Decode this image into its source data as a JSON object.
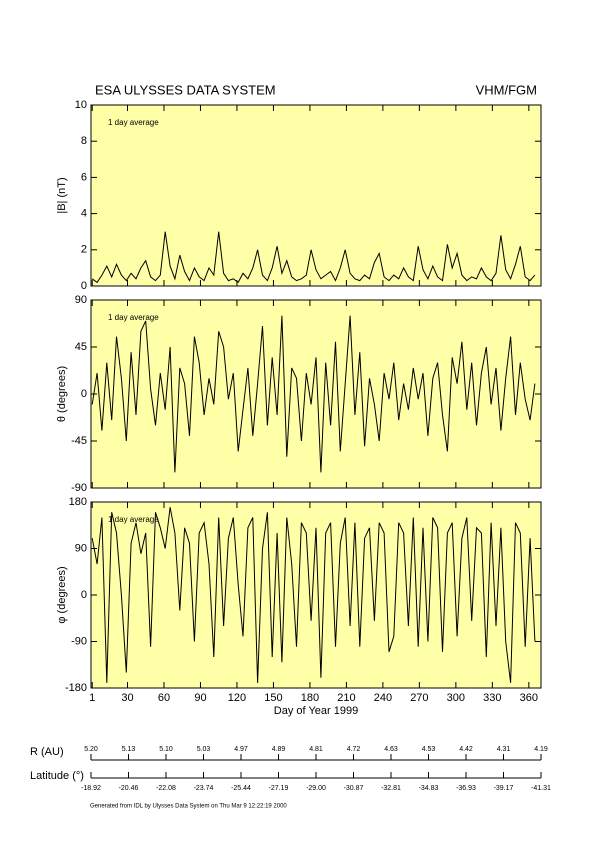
{
  "header": {
    "title": "ESA ULYSSES DATA SYSTEM",
    "instrument": "VHM/FGM"
  },
  "chart_data": [
    {
      "type": "line",
      "ylabel": "|B| (nT)",
      "annotation": "1 day average",
      "color": "#000000",
      "background": "#ffffa8",
      "xlim": [
        0,
        370
      ],
      "xticks": [
        1,
        30,
        60,
        90,
        120,
        150,
        180,
        210,
        240,
        270,
        300,
        330,
        360
      ],
      "ylim": [
        0,
        10
      ],
      "yticks": [
        0,
        2,
        4,
        6,
        8,
        10
      ],
      "x": [
        1,
        5,
        9,
        13,
        17,
        21,
        25,
        29,
        33,
        37,
        41,
        45,
        49,
        53,
        57,
        61,
        65,
        69,
        73,
        77,
        81,
        85,
        89,
        93,
        97,
        101,
        105,
        109,
        113,
        117,
        121,
        125,
        129,
        133,
        137,
        141,
        145,
        149,
        153,
        157,
        161,
        165,
        169,
        173,
        177,
        181,
        185,
        189,
        193,
        197,
        201,
        205,
        209,
        213,
        217,
        221,
        225,
        229,
        233,
        237,
        241,
        245,
        249,
        253,
        257,
        261,
        265,
        269,
        273,
        277,
        281,
        285,
        289,
        293,
        297,
        301,
        305,
        309,
        313,
        317,
        321,
        325,
        329,
        333,
        337,
        341,
        345,
        349,
        353,
        357,
        361,
        365
      ],
      "values": [
        0.4,
        0.2,
        0.6,
        1.1,
        0.5,
        1.2,
        0.6,
        0.3,
        0.7,
        0.4,
        1.0,
        1.4,
        0.5,
        0.3,
        0.6,
        3.0,
        1.1,
        0.4,
        1.7,
        0.8,
        0.3,
        1.0,
        0.5,
        0.3,
        1.0,
        0.6,
        3.0,
        0.7,
        0.3,
        0.4,
        0.2,
        0.7,
        0.4,
        1.0,
        2.0,
        0.6,
        0.3,
        1.0,
        2.2,
        0.7,
        1.4,
        0.5,
        0.3,
        0.4,
        0.6,
        2.0,
        0.9,
        0.4,
        0.6,
        0.8,
        0.3,
        1.0,
        2.0,
        0.7,
        0.4,
        0.3,
        0.6,
        0.4,
        1.3,
        1.8,
        0.5,
        0.3,
        0.6,
        0.4,
        1.0,
        0.5,
        0.3,
        2.2,
        0.9,
        0.4,
        1.1,
        0.5,
        0.3,
        2.3,
        1.0,
        1.8,
        0.6,
        0.3,
        0.5,
        0.4,
        1.0,
        0.5,
        0.3,
        0.7,
        2.8,
        0.9,
        0.4,
        1.2,
        2.2,
        0.5,
        0.3,
        0.6
      ]
    },
    {
      "type": "line",
      "ylabel": "θ (degrees)",
      "annotation": "1 day average",
      "color": "#000000",
      "background": "#ffffa8",
      "xlim": [
        0,
        370
      ],
      "xticks": [
        1,
        30,
        60,
        90,
        120,
        150,
        180,
        210,
        240,
        270,
        300,
        330,
        360
      ],
      "ylim": [
        -90,
        90
      ],
      "yticks": [
        -90,
        -45,
        0,
        45,
        90
      ],
      "x": [
        1,
        5,
        9,
        13,
        17,
        21,
        25,
        29,
        33,
        37,
        41,
        45,
        49,
        53,
        57,
        61,
        65,
        69,
        73,
        77,
        81,
        85,
        89,
        93,
        97,
        101,
        105,
        109,
        113,
        117,
        121,
        125,
        129,
        133,
        137,
        141,
        145,
        149,
        153,
        157,
        161,
        165,
        169,
        173,
        177,
        181,
        185,
        189,
        193,
        197,
        201,
        205,
        209,
        213,
        217,
        221,
        225,
        229,
        233,
        237,
        241,
        245,
        249,
        253,
        257,
        261,
        265,
        269,
        273,
        277,
        281,
        285,
        289,
        293,
        297,
        301,
        305,
        309,
        313,
        317,
        321,
        325,
        329,
        333,
        337,
        341,
        345,
        349,
        353,
        357,
        361,
        365
      ],
      "values": [
        -10,
        20,
        -35,
        30,
        -25,
        55,
        15,
        -45,
        40,
        -20,
        60,
        70,
        5,
        -30,
        20,
        -15,
        45,
        -75,
        25,
        10,
        -40,
        55,
        30,
        -20,
        15,
        -10,
        60,
        45,
        -5,
        20,
        -55,
        -15,
        25,
        -40,
        10,
        65,
        -30,
        35,
        -20,
        75,
        -60,
        25,
        15,
        -45,
        20,
        -10,
        35,
        -75,
        30,
        -30,
        50,
        -55,
        10,
        75,
        -20,
        40,
        -50,
        15,
        -10,
        -45,
        20,
        -5,
        30,
        -25,
        10,
        -15,
        25,
        -5,
        20,
        -40,
        15,
        30,
        -20,
        -55,
        35,
        10,
        50,
        -15,
        30,
        -30,
        20,
        45,
        -10,
        25,
        -35,
        15,
        55,
        -20,
        30,
        -5,
        -25,
        10
      ]
    },
    {
      "type": "line",
      "ylabel": "φ (degrees)",
      "annotation": "1 day average",
      "xlabel": "Day of Year 1999",
      "color": "#000000",
      "background": "#ffffa8",
      "xlim": [
        0,
        370
      ],
      "xticks": [
        1,
        30,
        60,
        90,
        120,
        150,
        180,
        210,
        240,
        270,
        300,
        330,
        360
      ],
      "ylim": [
        -180,
        180
      ],
      "yticks": [
        -180,
        -90,
        0,
        90,
        180
      ],
      "x": [
        1,
        5,
        9,
        13,
        17,
        21,
        25,
        29,
        33,
        37,
        41,
        45,
        49,
        53,
        57,
        61,
        65,
        69,
        73,
        77,
        81,
        85,
        89,
        93,
        97,
        101,
        105,
        109,
        113,
        117,
        121,
        125,
        129,
        133,
        137,
        141,
        145,
        149,
        153,
        157,
        161,
        165,
        169,
        173,
        177,
        181,
        185,
        189,
        193,
        197,
        201,
        205,
        209,
        213,
        217,
        221,
        225,
        229,
        233,
        237,
        241,
        245,
        249,
        253,
        257,
        261,
        265,
        269,
        273,
        277,
        281,
        285,
        289,
        293,
        297,
        301,
        305,
        309,
        313,
        317,
        321,
        325,
        329,
        333,
        337,
        341,
        345,
        349,
        353,
        357,
        361,
        365
      ],
      "values": [
        110,
        60,
        150,
        -170,
        160,
        120,
        0,
        -150,
        100,
        140,
        80,
        120,
        -100,
        160,
        130,
        90,
        170,
        120,
        -30,
        130,
        100,
        -90,
        120,
        140,
        60,
        -120,
        150,
        -60,
        110,
        150,
        20,
        -80,
        130,
        150,
        -170,
        90,
        160,
        -120,
        120,
        -130,
        150,
        60,
        -100,
        140,
        120,
        -50,
        130,
        -160,
        120,
        140,
        -100,
        100,
        150,
        -60,
        140,
        -100,
        110,
        130,
        -50,
        140,
        120,
        -110,
        -80,
        140,
        120,
        -60,
        150,
        -100,
        130,
        -90,
        150,
        130,
        -110,
        120,
        140,
        -80,
        110,
        150,
        -50,
        130,
        120,
        -120,
        140,
        -60,
        130,
        -90,
        -170,
        140,
        120,
        -100,
        110,
        -90
      ]
    }
  ],
  "orbit": {
    "r_label": "R (AU)",
    "r_values": [
      "5.20",
      "5.13",
      "5.10",
      "5.03",
      "4.97",
      "4.89",
      "4.81",
      "4.72",
      "4.63",
      "4.53",
      "4.42",
      "4.31",
      "4.19"
    ],
    "lat_label": "Latitude (°)",
    "lat_values": [
      "-18.92",
      "-20.46",
      "-22.08",
      "-23.74",
      "-25.44",
      "-27.19",
      "-29.00",
      "-30.87",
      "-32.81",
      "-34.83",
      "-36.93",
      "-39.17",
      "-41.31"
    ]
  },
  "footer": "Generated from IDL by Ulysses Data System on Thu Mar 9 12:22:19 2000"
}
